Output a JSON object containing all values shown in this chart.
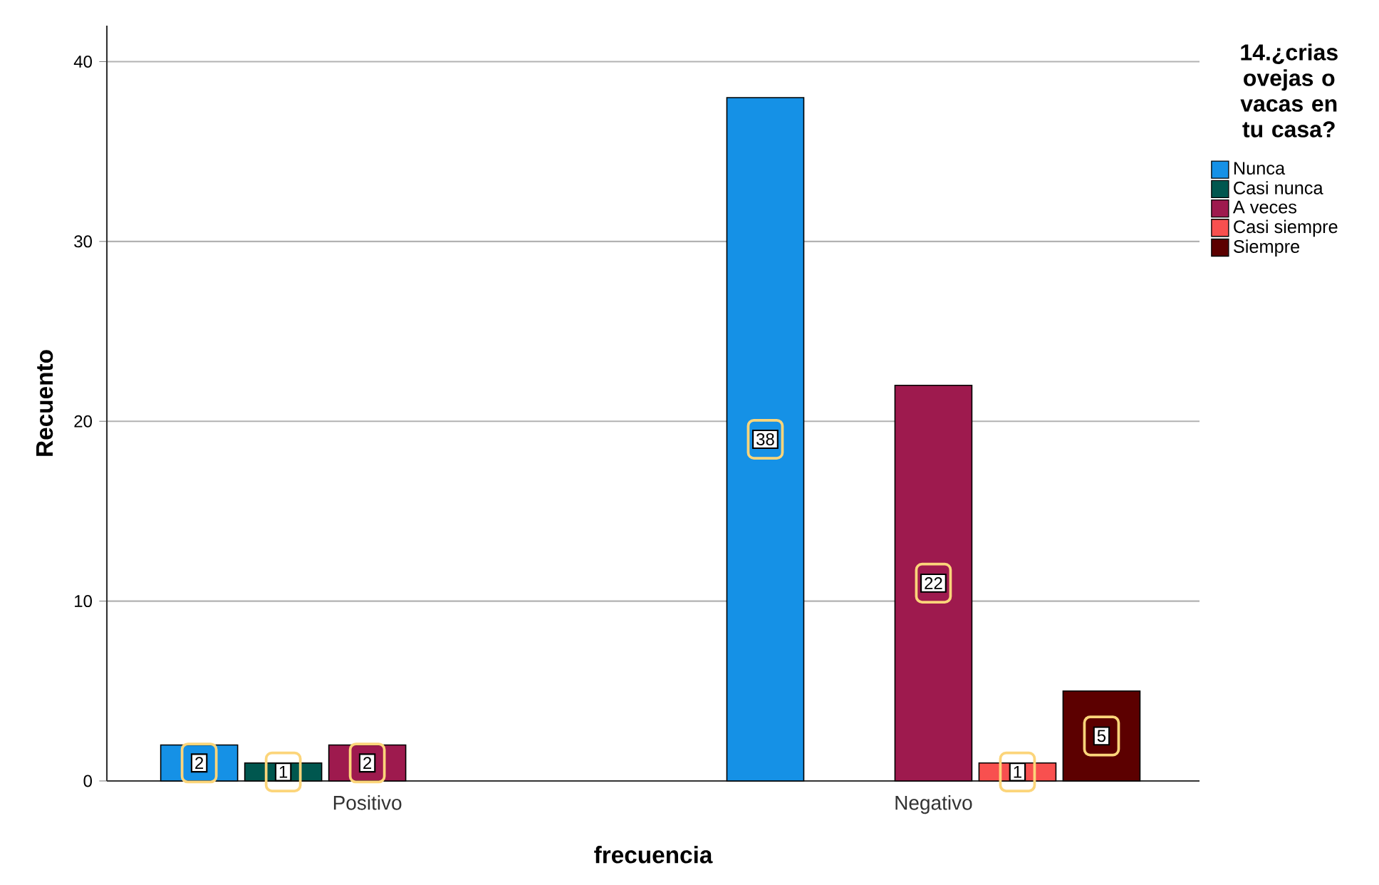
{
  "chart_data": {
    "type": "bar",
    "xlabel": "frecuencia",
    "ylabel": "Recuento",
    "legend_title": "14.¿crias ovejas o vacas en tu casa?",
    "categories": [
      "Positivo",
      "Negativo"
    ],
    "series": [
      {
        "name": "Nunca",
        "color": "#1591e6",
        "values": [
          2,
          38
        ]
      },
      {
        "name": "Casi nunca",
        "color": "#00574f",
        "values": [
          1,
          null
        ]
      },
      {
        "name": "A veces",
        "color": "#9e1a4e",
        "values": [
          2,
          22
        ]
      },
      {
        "name": "Casi siempre",
        "color": "#f8504f",
        "values": [
          null,
          1
        ]
      },
      {
        "name": "Siempre",
        "color": "#5c0000",
        "values": [
          null,
          5
        ]
      }
    ],
    "ylim": [
      0,
      42
    ],
    "yticks": [
      0,
      10,
      20,
      30,
      40
    ],
    "grid": "y",
    "legend": "top right",
    "data_labels": true
  }
}
